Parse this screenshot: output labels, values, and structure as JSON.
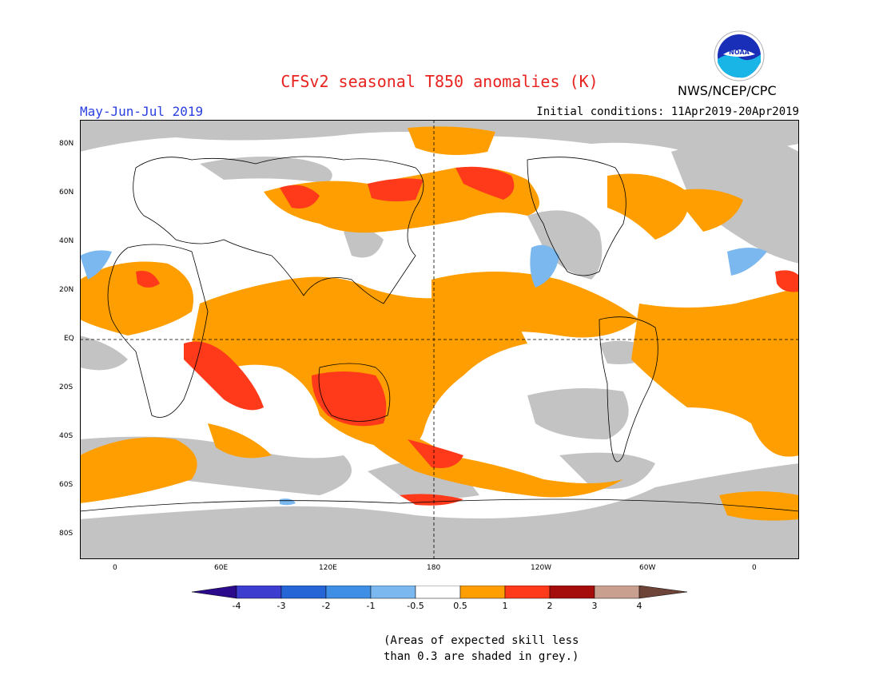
{
  "title": "CFSv2 seasonal T850 anomalies (K)",
  "season": "May-Jun-Jul 2019",
  "initial_conditions": "Initial conditions: 11Apr2019-20Apr2019",
  "agency": "NWS/NCEP/CPC",
  "logo_text": "NOAA",
  "lat_labels": [
    "80N",
    "60N",
    "40N",
    "20N",
    "EQ",
    "20S",
    "40S",
    "60S",
    "80S"
  ],
  "lon_labels": [
    "0",
    "60E",
    "120E",
    "180",
    "120W",
    "60W",
    "0"
  ],
  "colorbar": {
    "labels": [
      "-4",
      "-3",
      "-2",
      "-1",
      "-0.5",
      "0.5",
      "1",
      "2",
      "3",
      "4"
    ],
    "colors": [
      "#2b0b8c",
      "#3d3ed0",
      "#2665d6",
      "#3f8fe6",
      "#7ab8ef",
      "#ffffff",
      "#ff9e00",
      "#ff3a1a",
      "#a50d0d",
      "#c9a08f",
      "#6e4438"
    ]
  },
  "note_line1": "(Areas of expected skill less",
  "note_line2": "than 0.3 are shaded in grey.)",
  "legend_grey": "#c3c3c3"
}
